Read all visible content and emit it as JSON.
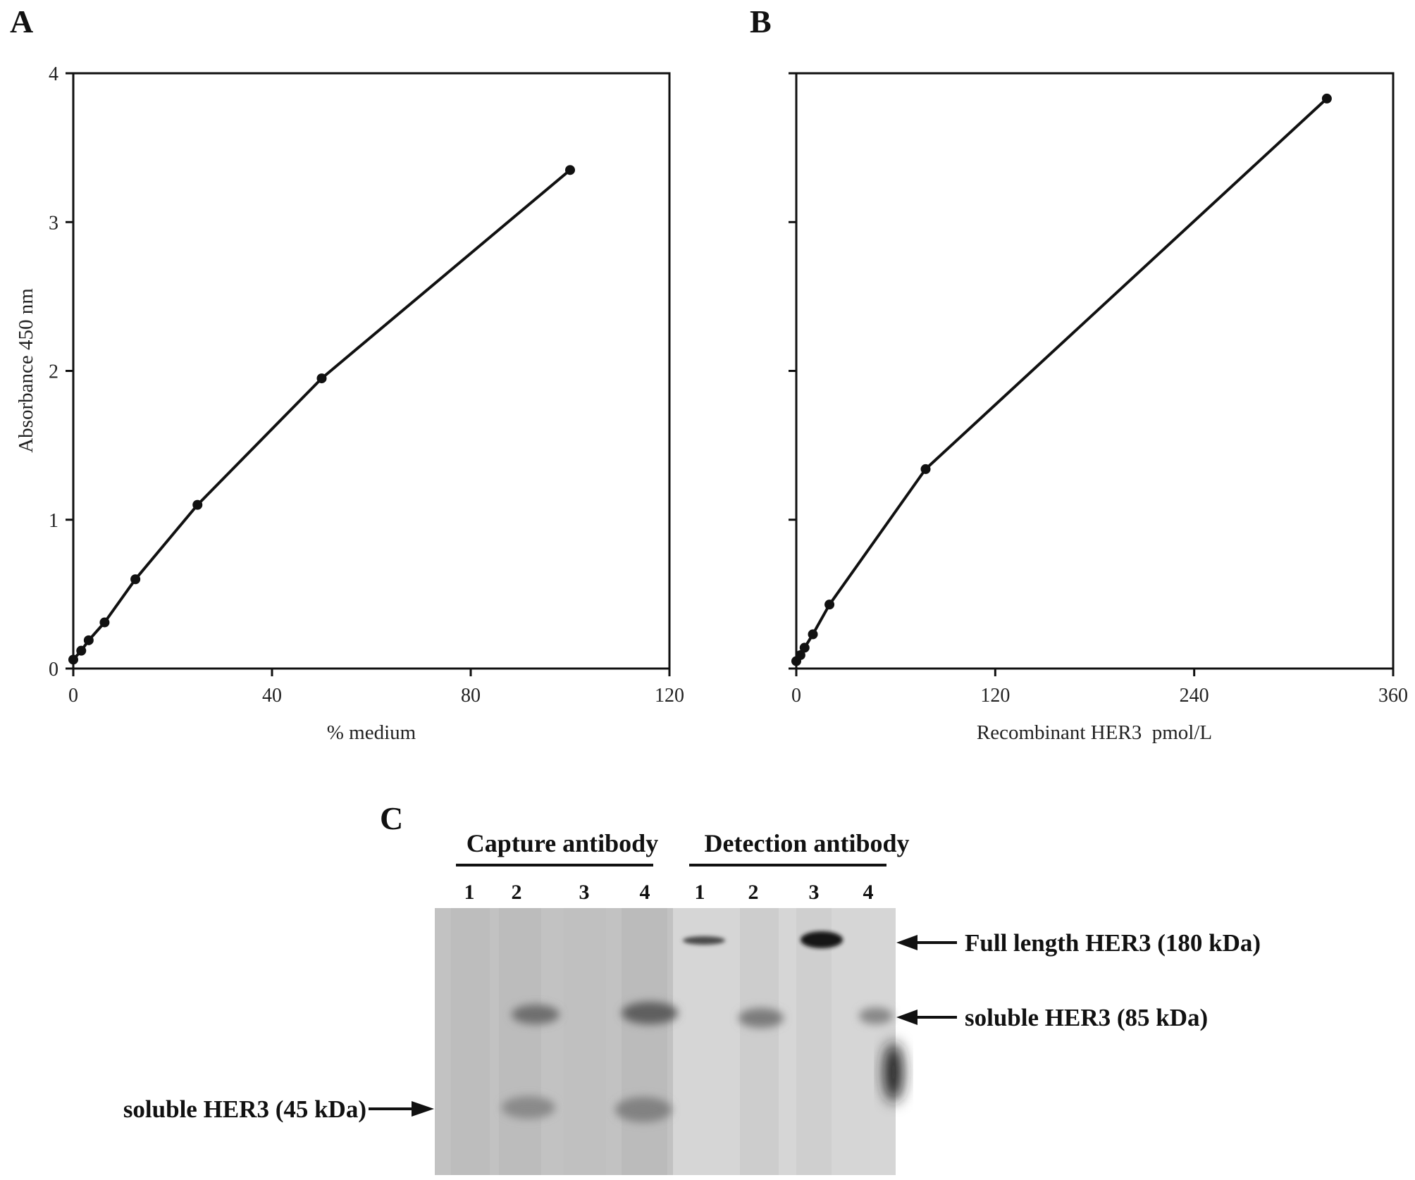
{
  "panels": {
    "A": {
      "label": "A"
    },
    "B": {
      "label": "B"
    },
    "C": {
      "label": "C"
    }
  },
  "chart_data": [
    {
      "type": "line",
      "panel": "A",
      "xlabel": "% medium",
      "ylabel": "Absorbance 450 nm",
      "xlim": [
        0,
        120
      ],
      "ylim": [
        0,
        4
      ],
      "xticks": [
        0,
        40,
        80,
        120
      ],
      "yticks": [
        0,
        1,
        2,
        3,
        4
      ],
      "grid": false,
      "series": [
        {
          "x": [
            0,
            1.6,
            3.1,
            6.3,
            12.5,
            25,
            50,
            100
          ],
          "y": [
            0.06,
            0.12,
            0.19,
            0.31,
            0.6,
            1.1,
            1.95,
            3.35
          ]
        }
      ]
    },
    {
      "type": "line",
      "panel": "B",
      "xlabel": "Recombinant HER3  pmol/L",
      "ylabel": "",
      "xlim": [
        0,
        360
      ],
      "ylim": [
        0,
        4
      ],
      "xticks": [
        0,
        120,
        240,
        360
      ],
      "yticks": [
        0,
        1,
        2,
        3,
        4
      ],
      "ytick_labels_visible": false,
      "grid": false,
      "series": [
        {
          "x": [
            0,
            2.5,
            5,
            10,
            20,
            78,
            320
          ],
          "y": [
            0.05,
            0.09,
            0.14,
            0.23,
            0.43,
            1.34,
            3.83
          ]
        }
      ]
    }
  ],
  "blot": {
    "groups": [
      {
        "label": "Capture antibody",
        "lanes": [
          "1",
          "2",
          "3",
          "4"
        ]
      },
      {
        "label": "Detection antibody",
        "lanes": [
          "1",
          "2",
          "3",
          "4"
        ]
      }
    ],
    "annotations": {
      "full_length": "Full length HER3 (180 kDa)",
      "soluble_85": "soluble HER3 (85 kDa)",
      "soluble_45": "soluble HER3 (45 kDa)"
    }
  }
}
